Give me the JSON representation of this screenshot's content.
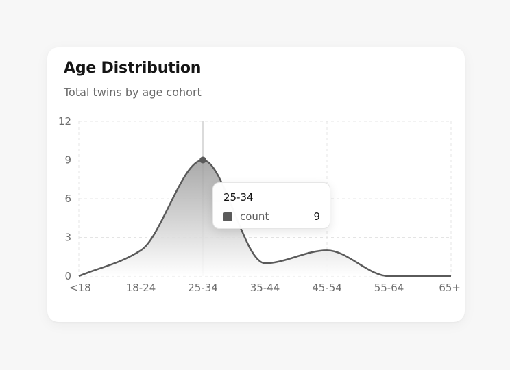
{
  "card": {
    "title": "Age Distribution",
    "subtitle": "Total twins by age cohort"
  },
  "tooltip": {
    "title": "25-34",
    "series_name": "count",
    "value": "9"
  },
  "colors": {
    "line": "#5a5a5a",
    "area_top": "#9a9a9a",
    "area_bottom": "#ffffff",
    "grid": "#e4e4e4",
    "cursor": "#cfcfcf",
    "background": "#f7f7f7",
    "card": "#ffffff"
  },
  "chart_data": {
    "type": "area",
    "categories": [
      "<18",
      "18-24",
      "25-34",
      "35-44",
      "45-54",
      "55-64",
      "65+"
    ],
    "series": [
      {
        "name": "count",
        "values": [
          0,
          2,
          9,
          1,
          2,
          0,
          0
        ]
      }
    ],
    "title": "Age Distribution",
    "subtitle": "Total twins by age cohort",
    "xlabel": "",
    "ylabel": "",
    "ylim": [
      0,
      12
    ],
    "yticks": [
      0,
      3,
      6,
      9,
      12
    ],
    "grid": true,
    "legend": "none",
    "highlighted_category": "25-34"
  }
}
